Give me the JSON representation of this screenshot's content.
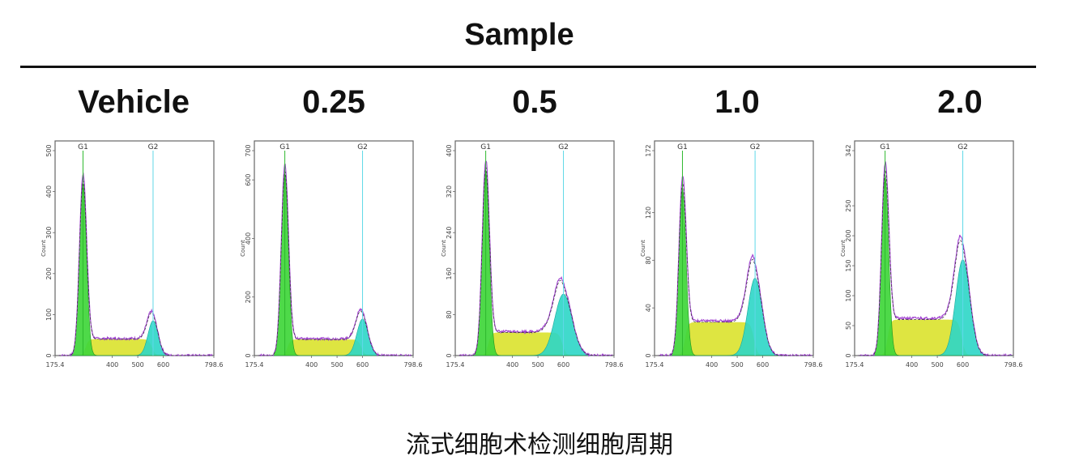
{
  "header": {
    "title": "Sample"
  },
  "caption": "流式细胞术检测细胞周期",
  "chart_data": [
    {
      "type": "area",
      "label": "Vehicle",
      "ylabel": "Count",
      "y_ticks": [
        "0",
        "100",
        "200",
        "300",
        "400",
        "500"
      ],
      "xlim": [
        175.4,
        798.6
      ],
      "x_ticks": [
        "175.4",
        "400",
        "500",
        "600",
        "798.6"
      ],
      "g1_label": "G1",
      "g2_label": "G2",
      "g1_position": 285,
      "g2_position": 560,
      "ymax": 500,
      "g1_peak": 420,
      "g1_sigma": 14,
      "s_phase_level": 40,
      "g2_peak": 85,
      "g2_sigma": 20
    },
    {
      "type": "area",
      "label": "0.25",
      "ylabel": "Count",
      "y_ticks": [
        "0",
        "200",
        "400",
        "600",
        "700"
      ],
      "xlim": [
        175.4,
        798.6
      ],
      "x_ticks": [
        "175.4",
        "400",
        "500",
        "600",
        "798.6"
      ],
      "g1_label": "G1",
      "g2_label": "G2",
      "g1_position": 295,
      "g2_position": 600,
      "ymax": 700,
      "g1_peak": 620,
      "g1_sigma": 14,
      "s_phase_level": 55,
      "g2_peak": 125,
      "g2_sigma": 22
    },
    {
      "type": "area",
      "label": "0.5",
      "ylabel": "Count",
      "y_ticks": [
        "0",
        "80",
        "160",
        "240",
        "320",
        "400"
      ],
      "xlim": [
        175.4,
        798.6
      ],
      "x_ticks": [
        "175.4",
        "400",
        "500",
        "600",
        "798.6"
      ],
      "g1_label": "G1",
      "g2_label": "G2",
      "g1_position": 295,
      "g2_position": 600,
      "ymax": 400,
      "g1_peak": 360,
      "g1_sigma": 14,
      "s_phase_level": 45,
      "g2_peak": 120,
      "g2_sigma": 34
    },
    {
      "type": "area",
      "label": "1.0",
      "ylabel": "Count",
      "y_ticks": [
        "0",
        "40",
        "80",
        "120",
        "172"
      ],
      "xlim": [
        175.4,
        798.6
      ],
      "x_ticks": [
        "175.4",
        "400",
        "500",
        "600",
        "798.6"
      ],
      "g1_label": "G1",
      "g2_label": "G2",
      "g1_position": 285,
      "g2_position": 570,
      "ymax": 172,
      "g1_peak": 140,
      "g1_sigma": 14,
      "s_phase_level": 28,
      "g2_peak": 65,
      "g2_sigma": 28
    },
    {
      "type": "area",
      "label": "2.0",
      "ylabel": "Count",
      "y_ticks": [
        "0",
        "50",
        "100",
        "150",
        "200",
        "250",
        "342"
      ],
      "xlim": [
        175.4,
        798.6
      ],
      "x_ticks": [
        "175.4",
        "400",
        "500",
        "600",
        "798.6"
      ],
      "g1_label": "G1",
      "g2_label": "G2",
      "g1_position": 295,
      "g2_position": 600,
      "ymax": 342,
      "g1_peak": 300,
      "g1_sigma": 14,
      "s_phase_level": 60,
      "g2_peak": 160,
      "g2_sigma": 28
    }
  ]
}
